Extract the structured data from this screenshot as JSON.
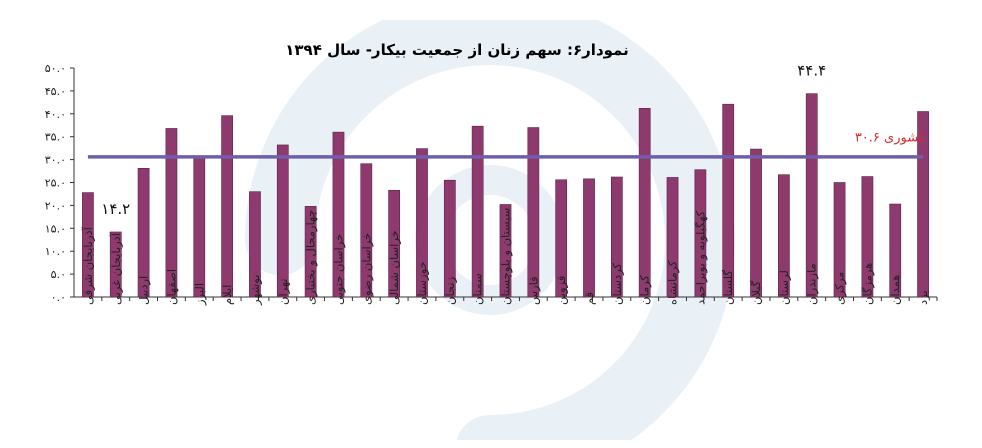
{
  "colors": {
    "bar": "#8e3a6e",
    "bar_edge": "#5e2148",
    "national_line": "#6f5fa8",
    "national_label": "#d42b2b",
    "axis": "#333333",
    "watermark": "#e9f1f7"
  },
  "chart_data": {
    "type": "bar",
    "title": "نمودار۶: سهم زنان از جمعیت بیکار- سال ۱۳۹۴",
    "xlabel": "",
    "ylabel": "",
    "ylim": [
      0,
      50
    ],
    "y_ticks": [
      "۰.۰",
      "۵.۰",
      "۱۰.۰",
      "۱۵.۰",
      "۲۰.۰",
      "۲۵.۰",
      "۳۰.۰",
      "۳۵.۰",
      "۴۰.۰",
      "۴۵.۰",
      "۵۰.۰"
    ],
    "y_tick_values": [
      0,
      5,
      10,
      15,
      20,
      25,
      30,
      35,
      40,
      45,
      50
    ],
    "grid": false,
    "legend": "none",
    "categories": [
      "آذربایجان شرقی",
      "آذربایجان غربی",
      "اردبیل",
      "اصفهان",
      "البرز",
      "ایلام",
      "بوشهر",
      "تهران",
      "چهارمحال و بختیاری",
      "خراسان جنوبی",
      "خراسان رضوی",
      "خراسان شمالی",
      "خوزستان",
      "زنجان",
      "سمنان",
      "سیستان و بلوچستان",
      "فارس",
      "قزوین",
      "قم",
      "کردستان",
      "کرمان",
      "کرمانشاه",
      "کهگیلویه و بویراحمد",
      "گلستان",
      "گیلان",
      "لرستان",
      "مازندران",
      "مرکزی",
      "هرمزگان",
      "همدان",
      "یزد"
    ],
    "values": [
      22.8,
      14.2,
      28.1,
      36.8,
      30.5,
      39.6,
      23.0,
      33.2,
      19.8,
      36.0,
      29.1,
      23.3,
      32.4,
      25.5,
      37.3,
      20.2,
      37.0,
      25.6,
      25.8,
      26.2,
      41.2,
      26.1,
      27.8,
      42.1,
      32.3,
      26.7,
      44.4,
      25.0,
      26.3,
      20.3,
      40.5
    ],
    "annotations": [
      {
        "text": "۱۴.۲",
        "category_index": 1,
        "value": 14.2
      },
      {
        "text": "۴۴.۴",
        "category_index": 26,
        "value": 44.4
      }
    ],
    "reference_line": {
      "label": "کشوری ۳۰.۶",
      "value": 30.6
    }
  }
}
